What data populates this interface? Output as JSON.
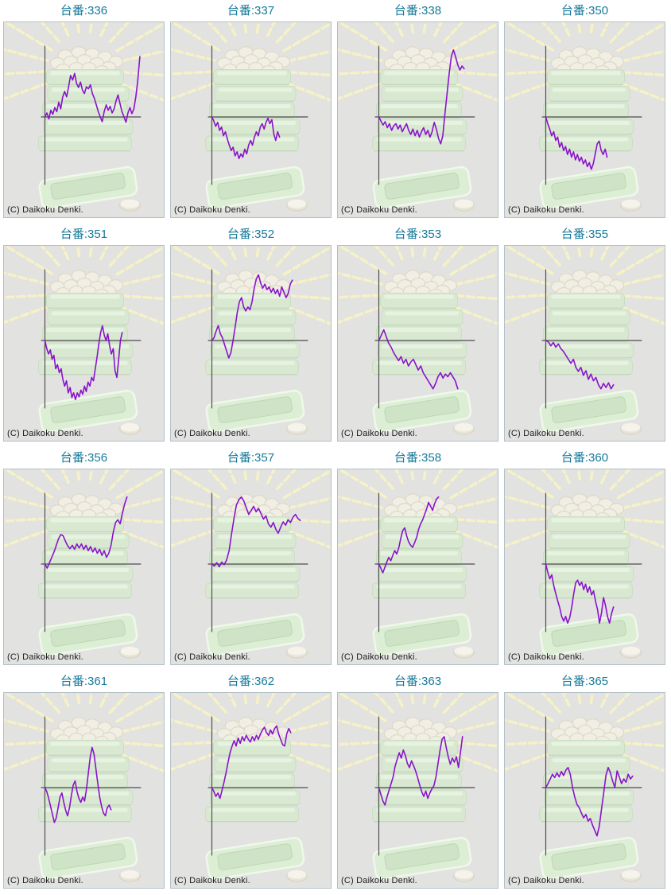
{
  "copyright_label": "(C) Daikoku Denki.",
  "title_prefix": "台番:",
  "colors": {
    "title_text": "#177a9a",
    "graph_line": "#8812cc",
    "axis": "#4d4d4d",
    "panel_bg": "#e2e2e1",
    "panel_border": "#b2c0c7",
    "watermark_green": "#d9e9d1",
    "watermark_yellow": "#f6f2c6"
  },
  "chart_data": [
    {
      "type": "line",
      "title": "台番:336",
      "machine_no": "336",
      "xlabel": "",
      "ylabel": "",
      "ylim": [
        -1,
        1
      ],
      "axes_labeled": false,
      "end_frac": 0.85,
      "values": [
        0,
        0.06,
        -0.03,
        0.1,
        0.04,
        0.14,
        0.08,
        0.22,
        0.12,
        0.3,
        0.38,
        0.3,
        0.45,
        0.62,
        0.55,
        0.65,
        0.5,
        0.44,
        0.52,
        0.4,
        0.35,
        0.45,
        0.42,
        0.48,
        0.35,
        0.28,
        0.18,
        0.08,
        0,
        -0.07,
        0.08,
        0.18,
        0.1,
        0.16,
        0.06,
        0.12,
        0.24,
        0.33,
        0.2,
        0.08,
        0,
        -0.08,
        0.06,
        0.14,
        0.05,
        0.12,
        0.3,
        0.55,
        0.9
      ]
    },
    {
      "type": "line",
      "title": "台番:337",
      "machine_no": "337",
      "xlabel": "",
      "ylabel": "",
      "ylim": [
        -1,
        1
      ],
      "axes_labeled": false,
      "end_frac": 0.68,
      "values": [
        0,
        -0.06,
        -0.14,
        -0.08,
        -0.2,
        -0.15,
        -0.28,
        -0.22,
        -0.33,
        -0.42,
        -0.5,
        -0.45,
        -0.58,
        -0.52,
        -0.62,
        -0.55,
        -0.6,
        -0.48,
        -0.55,
        -0.42,
        -0.35,
        -0.42,
        -0.3,
        -0.22,
        -0.28,
        -0.15,
        -0.1,
        -0.18,
        -0.08,
        -0.02,
        -0.1,
        -0.04,
        -0.25,
        -0.35,
        -0.22,
        -0.3
      ]
    },
    {
      "type": "line",
      "title": "台番:338",
      "machine_no": "338",
      "xlabel": "",
      "ylabel": "",
      "ylim": [
        -1,
        1
      ],
      "axes_labeled": false,
      "end_frac": 0.79,
      "values": [
        0,
        -0.06,
        -0.12,
        -0.07,
        -0.16,
        -0.1,
        -0.2,
        -0.13,
        -0.1,
        -0.18,
        -0.12,
        -0.22,
        -0.16,
        -0.1,
        -0.2,
        -0.26,
        -0.18,
        -0.28,
        -0.2,
        -0.3,
        -0.22,
        -0.16,
        -0.26,
        -0.2,
        -0.3,
        -0.22,
        -0.08,
        -0.18,
        -0.32,
        -0.4,
        -0.28,
        0.05,
        0.35,
        0.65,
        0.9,
        1,
        0.9,
        0.78,
        0.7,
        0.76,
        0.72
      ]
    },
    {
      "type": "line",
      "title": "台番:350",
      "machine_no": "350",
      "xlabel": "",
      "ylabel": "",
      "ylim": [
        -1,
        1
      ],
      "axes_labeled": false,
      "end_frac": 0.64,
      "values": [
        0,
        -0.1,
        -0.18,
        -0.28,
        -0.22,
        -0.35,
        -0.3,
        -0.45,
        -0.38,
        -0.5,
        -0.44,
        -0.56,
        -0.48,
        -0.6,
        -0.52,
        -0.64,
        -0.56,
        -0.66,
        -0.6,
        -0.7,
        -0.64,
        -0.74,
        -0.68,
        -0.78,
        -0.7,
        -0.55,
        -0.4,
        -0.36,
        -0.5,
        -0.56,
        -0.48,
        -0.6
      ]
    },
    {
      "type": "line",
      "title": "台番:351",
      "machine_no": "351",
      "xlabel": "",
      "ylabel": "",
      "ylim": [
        -1,
        1
      ],
      "axes_labeled": false,
      "end_frac": 0.74,
      "values": [
        0,
        -0.12,
        -0.2,
        -0.14,
        -0.28,
        -0.22,
        -0.42,
        -0.36,
        -0.48,
        -0.42,
        -0.58,
        -0.68,
        -0.6,
        -0.78,
        -0.7,
        -0.85,
        -0.78,
        -0.88,
        -0.78,
        -0.84,
        -0.74,
        -0.8,
        -0.68,
        -0.76,
        -0.62,
        -0.68,
        -0.55,
        -0.6,
        -0.42,
        -0.25,
        -0.05,
        0.12,
        0.22,
        0.08,
        0,
        0.1,
        -0.08,
        -0.2,
        -0.12,
        -0.45,
        -0.55,
        -0.28,
        0,
        0.12
      ]
    },
    {
      "type": "line",
      "title": "台番:352",
      "machine_no": "352",
      "xlabel": "",
      "ylabel": "",
      "ylim": [
        -1,
        1
      ],
      "axes_labeled": false,
      "end_frac": 0.76,
      "values": [
        0,
        0.04,
        0.14,
        0.22,
        0.1,
        0.04,
        -0.06,
        -0.16,
        -0.26,
        -0.18,
        0,
        0.2,
        0.42,
        0.58,
        0.64,
        0.5,
        0.44,
        0.5,
        0.46,
        0.58,
        0.78,
        0.92,
        0.98,
        0.86,
        0.78,
        0.84,
        0.76,
        0.8,
        0.72,
        0.78,
        0.7,
        0.76,
        0.66,
        0.8,
        0.72,
        0.64,
        0.7,
        0.84,
        0.9
      ]
    },
    {
      "type": "line",
      "title": "台番:353",
      "machine_no": "353",
      "xlabel": "",
      "ylabel": "",
      "ylim": [
        -1,
        1
      ],
      "axes_labeled": false,
      "end_frac": 0.75,
      "values": [
        0,
        0.08,
        0.16,
        0.06,
        -0.04,
        -0.1,
        -0.18,
        -0.24,
        -0.3,
        -0.24,
        -0.34,
        -0.28,
        -0.38,
        -0.32,
        -0.28,
        -0.36,
        -0.44,
        -0.38,
        -0.48,
        -0.54,
        -0.6,
        -0.66,
        -0.72,
        -0.64,
        -0.54,
        -0.48,
        -0.56,
        -0.5,
        -0.54,
        -0.48,
        -0.54,
        -0.6,
        -0.72
      ]
    },
    {
      "type": "line",
      "title": "台番:355",
      "machine_no": "355",
      "xlabel": "",
      "ylabel": "",
      "ylim": [
        -1,
        1
      ],
      "axes_labeled": false,
      "end_frac": 0.68,
      "values": [
        0,
        -0.02,
        -0.08,
        -0.03,
        -0.1,
        -0.05,
        -0.12,
        -0.16,
        -0.22,
        -0.28,
        -0.34,
        -0.28,
        -0.4,
        -0.46,
        -0.4,
        -0.52,
        -0.45,
        -0.58,
        -0.5,
        -0.6,
        -0.55,
        -0.66,
        -0.72,
        -0.64,
        -0.7,
        -0.63,
        -0.72,
        -0.66
      ]
    },
    {
      "type": "line",
      "title": "台番:356",
      "machine_no": "356",
      "xlabel": "",
      "ylabel": "",
      "ylim": [
        -1,
        1
      ],
      "axes_labeled": false,
      "end_frac": 0.77,
      "values": [
        0,
        -0.06,
        0.02,
        0.1,
        0.18,
        0.28,
        0.38,
        0.44,
        0.42,
        0.34,
        0.27,
        0.23,
        0.28,
        0.22,
        0.3,
        0.24,
        0.3,
        0.22,
        0.28,
        0.2,
        0.26,
        0.18,
        0.24,
        0.16,
        0.22,
        0.13,
        0.2,
        0.1,
        0.16,
        0.28,
        0.48,
        0.62,
        0.66,
        0.6,
        0.76,
        0.9,
        1
      ]
    },
    {
      "type": "line",
      "title": "台番:357",
      "machine_no": "357",
      "xlabel": "",
      "ylabel": "",
      "ylim": [
        -1,
        1
      ],
      "axes_labeled": false,
      "end_frac": 0.81,
      "values": [
        0,
        -0.03,
        0.02,
        -0.04,
        0.03,
        -0.01,
        0.06,
        0.2,
        0.45,
        0.68,
        0.88,
        0.96,
        1,
        0.94,
        0.84,
        0.74,
        0.8,
        0.86,
        0.78,
        0.83,
        0.75,
        0.67,
        0.72,
        0.6,
        0.55,
        0.62,
        0.52,
        0.46,
        0.55,
        0.63,
        0.58,
        0.66,
        0.62,
        0.7,
        0.74,
        0.68,
        0.65
      ]
    },
    {
      "type": "line",
      "title": "台番:358",
      "machine_no": "358",
      "xlabel": "",
      "ylabel": "",
      "ylim": [
        -1,
        1
      ],
      "axes_labeled": false,
      "end_frac": 0.63,
      "values": [
        0,
        -0.06,
        -0.13,
        -0.05,
        0.03,
        0.1,
        0.05,
        0.13,
        0.2,
        0.15,
        0.24,
        0.38,
        0.5,
        0.54,
        0.42,
        0.33,
        0.28,
        0.25,
        0.32,
        0.4,
        0.52,
        0.6,
        0.66,
        0.74,
        0.82,
        0.92,
        0.86,
        0.8,
        0.9,
        0.97,
        1
      ]
    },
    {
      "type": "line",
      "title": "台番:360",
      "machine_no": "360",
      "xlabel": "",
      "ylabel": "",
      "ylim": [
        -1,
        1
      ],
      "axes_labeled": false,
      "end_frac": 0.68,
      "values": [
        0,
        -0.12,
        -0.22,
        -0.16,
        -0.32,
        -0.44,
        -0.55,
        -0.65,
        -0.78,
        -0.85,
        -0.78,
        -0.88,
        -0.8,
        -0.65,
        -0.45,
        -0.28,
        -0.24,
        -0.32,
        -0.27,
        -0.38,
        -0.3,
        -0.42,
        -0.34,
        -0.46,
        -0.4,
        -0.56,
        -0.68,
        -0.88,
        -0.72,
        -0.5,
        -0.62,
        -0.78,
        -0.88,
        -0.74,
        -0.64
      ]
    },
    {
      "type": "line",
      "title": "台番:361",
      "machine_no": "361",
      "xlabel": "",
      "ylabel": "",
      "ylim": [
        -1,
        1
      ],
      "axes_labeled": false,
      "end_frac": 0.67,
      "values": [
        0,
        -0.06,
        -0.16,
        -0.28,
        -0.4,
        -0.52,
        -0.45,
        -0.3,
        -0.14,
        -0.08,
        -0.22,
        -0.34,
        -0.42,
        -0.3,
        -0.12,
        0.04,
        0.1,
        -0.06,
        -0.16,
        -0.22,
        -0.14,
        -0.2,
        -0.02,
        0.22,
        0.46,
        0.6,
        0.5,
        0.28,
        0.06,
        -0.14,
        -0.28,
        -0.38,
        -0.42,
        -0.3,
        -0.26,
        -0.33
      ]
    },
    {
      "type": "line",
      "title": "台番:362",
      "machine_no": "362",
      "xlabel": "",
      "ylabel": "",
      "ylim": [
        -1,
        1
      ],
      "axes_labeled": false,
      "end_frac": 0.75,
      "values": [
        0,
        -0.06,
        -0.13,
        -0.08,
        -0.16,
        -0.04,
        0.08,
        0.22,
        0.38,
        0.52,
        0.62,
        0.7,
        0.62,
        0.74,
        0.66,
        0.76,
        0.7,
        0.78,
        0.72,
        0.68,
        0.76,
        0.7,
        0.78,
        0.72,
        0.8,
        0.86,
        0.9,
        0.82,
        0.78,
        0.86,
        0.8,
        0.88,
        0.92,
        0.8,
        0.72,
        0.64,
        0.62,
        0.8,
        0.88,
        0.82
      ]
    },
    {
      "type": "line",
      "title": "台番:363",
      "machine_no": "363",
      "xlabel": "",
      "ylabel": "",
      "ylim": [
        -1,
        1
      ],
      "axes_labeled": false,
      "end_frac": 0.78,
      "values": [
        0,
        -0.1,
        -0.2,
        -0.26,
        -0.14,
        -0.04,
        0.06,
        0.16,
        0.32,
        0.42,
        0.52,
        0.44,
        0.56,
        0.48,
        0.36,
        0.3,
        0.4,
        0.33,
        0.25,
        0.15,
        0.04,
        -0.06,
        -0.13,
        -0.05,
        -0.16,
        -0.08,
        -0.02,
        0.03,
        0.16,
        0.36,
        0.56,
        0.72,
        0.76,
        0.6,
        0.46,
        0.35,
        0.44,
        0.38,
        0.46,
        0.3,
        0.52,
        0.76
      ]
    },
    {
      "type": "line",
      "title": "台番:365",
      "machine_no": "365",
      "xlabel": "",
      "ylabel": "",
      "ylim": [
        -1,
        1
      ],
      "axes_labeled": false,
      "end_frac": 0.8,
      "values": [
        0,
        0.06,
        0.13,
        0.2,
        0.15,
        0.22,
        0.16,
        0.24,
        0.18,
        0.26,
        0.3,
        0.2,
        0,
        -0.14,
        -0.25,
        -0.3,
        -0.38,
        -0.45,
        -0.4,
        -0.5,
        -0.46,
        -0.56,
        -0.64,
        -0.72,
        -0.58,
        -0.32,
        -0.08,
        0.18,
        0.3,
        0.22,
        0.1,
        0,
        0.25,
        0.16,
        0.06,
        0.13,
        0.08,
        0.2,
        0.13,
        0.17
      ]
    }
  ]
}
